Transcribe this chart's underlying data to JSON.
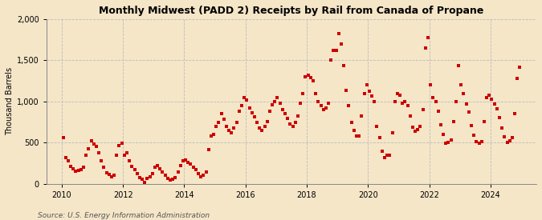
{
  "title": "Monthly Midwest (PADD 2) Receipts by Rail from Canada of Propane",
  "ylabel": "Thousand Barrels",
  "source": "Source: U.S. Energy Information Administration",
  "background_color": "#f5e6c8",
  "plot_background_color": "#f5e6c8",
  "marker_color": "#cc0000",
  "marker_size": 3,
  "ylim": [
    0,
    2000
  ],
  "yticks": [
    0,
    500,
    1000,
    1500,
    2000
  ],
  "ytick_labels": [
    "0",
    "500",
    "1,000",
    "1,500",
    "2,000"
  ],
  "xtick_labels": [
    "2010",
    "2012",
    "2014",
    "2016",
    "2018",
    "2020",
    "2022",
    "2024"
  ],
  "xlim_left": 2009.5,
  "xlim_right": 2025.5,
  "data": {
    "2010-01": 560,
    "2010-02": 320,
    "2010-03": 280,
    "2010-04": 210,
    "2010-05": 180,
    "2010-06": 150,
    "2010-07": 160,
    "2010-08": 170,
    "2010-09": 200,
    "2010-10": 350,
    "2010-11": 430,
    "2010-12": 520,
    "2011-01": 480,
    "2011-02": 450,
    "2011-03": 380,
    "2011-04": 280,
    "2011-05": 200,
    "2011-06": 130,
    "2011-07": 110,
    "2011-08": 90,
    "2011-09": 100,
    "2011-10": 350,
    "2011-11": 460,
    "2011-12": 490,
    "2012-01": 350,
    "2012-02": 380,
    "2012-03": 280,
    "2012-04": 210,
    "2012-05": 170,
    "2012-06": 120,
    "2012-07": 80,
    "2012-08": 60,
    "2012-09": 20,
    "2012-10": 70,
    "2012-11": 90,
    "2012-12": 120,
    "2013-01": 200,
    "2013-02": 220,
    "2013-03": 180,
    "2013-04": 140,
    "2013-05": 100,
    "2013-06": 70,
    "2013-07": 50,
    "2013-08": 60,
    "2013-09": 80,
    "2013-10": 140,
    "2013-11": 220,
    "2013-12": 280,
    "2014-01": 290,
    "2014-02": 260,
    "2014-03": 240,
    "2014-04": 200,
    "2014-05": 170,
    "2014-06": 120,
    "2014-07": 90,
    "2014-08": 100,
    "2014-09": 140,
    "2014-10": 420,
    "2014-11": 580,
    "2014-12": 600,
    "2015-01": 700,
    "2015-02": 750,
    "2015-03": 850,
    "2015-04": 780,
    "2015-05": 700,
    "2015-06": 650,
    "2015-07": 620,
    "2015-08": 680,
    "2015-09": 750,
    "2015-10": 880,
    "2015-11": 950,
    "2015-12": 1050,
    "2016-01": 1020,
    "2016-02": 920,
    "2016-03": 860,
    "2016-04": 810,
    "2016-05": 750,
    "2016-06": 680,
    "2016-07": 650,
    "2016-08": 700,
    "2016-09": 760,
    "2016-10": 880,
    "2016-11": 960,
    "2016-12": 1000,
    "2017-01": 1050,
    "2017-02": 980,
    "2017-03": 900,
    "2017-04": 850,
    "2017-05": 790,
    "2017-06": 730,
    "2017-07": 700,
    "2017-08": 750,
    "2017-09": 820,
    "2017-10": 980,
    "2017-11": 1100,
    "2017-12": 1300,
    "2018-01": 1320,
    "2018-02": 1290,
    "2018-03": 1250,
    "2018-04": 1100,
    "2018-05": 1000,
    "2018-06": 950,
    "2018-07": 900,
    "2018-08": 920,
    "2018-09": 980,
    "2018-10": 1500,
    "2018-11": 1620,
    "2018-12": 1620,
    "2019-01": 1820,
    "2019-02": 1700,
    "2019-03": 1440,
    "2019-04": 1130,
    "2019-05": 950,
    "2019-06": 750,
    "2019-07": 650,
    "2019-08": 580,
    "2019-09": 580,
    "2019-10": 820,
    "2019-11": 1100,
    "2019-12": 1200,
    "2020-01": 1120,
    "2020-02": 1070,
    "2020-03": 1000,
    "2020-04": 700,
    "2020-05": 560,
    "2020-06": 400,
    "2020-07": 320,
    "2020-08": 350,
    "2020-09": 350,
    "2020-10": 620,
    "2020-11": 1000,
    "2020-12": 1100,
    "2021-01": 1080,
    "2021-02": 980,
    "2021-03": 1000,
    "2021-04": 950,
    "2021-05": 820,
    "2021-06": 690,
    "2021-07": 640,
    "2021-08": 660,
    "2021-09": 700,
    "2021-10": 900,
    "2021-11": 1650,
    "2021-12": 1780,
    "2022-01": 1200,
    "2022-02": 1050,
    "2022-03": 1000,
    "2022-04": 880,
    "2022-05": 720,
    "2022-06": 600,
    "2022-07": 490,
    "2022-08": 500,
    "2022-09": 530,
    "2022-10": 760,
    "2022-11": 1000,
    "2022-12": 1440,
    "2023-01": 1200,
    "2023-02": 1100,
    "2023-03": 970,
    "2023-04": 870,
    "2023-05": 710,
    "2023-06": 590,
    "2023-07": 510,
    "2023-08": 490,
    "2023-09": 510,
    "2023-10": 760,
    "2023-11": 1050,
    "2023-12": 1080,
    "2024-01": 1030,
    "2024-02": 970,
    "2024-03": 910,
    "2024-04": 800,
    "2024-05": 680,
    "2024-06": 570,
    "2024-07": 500,
    "2024-08": 520,
    "2024-09": 560,
    "2024-10": 850,
    "2024-11": 1280,
    "2024-12": 1420
  }
}
